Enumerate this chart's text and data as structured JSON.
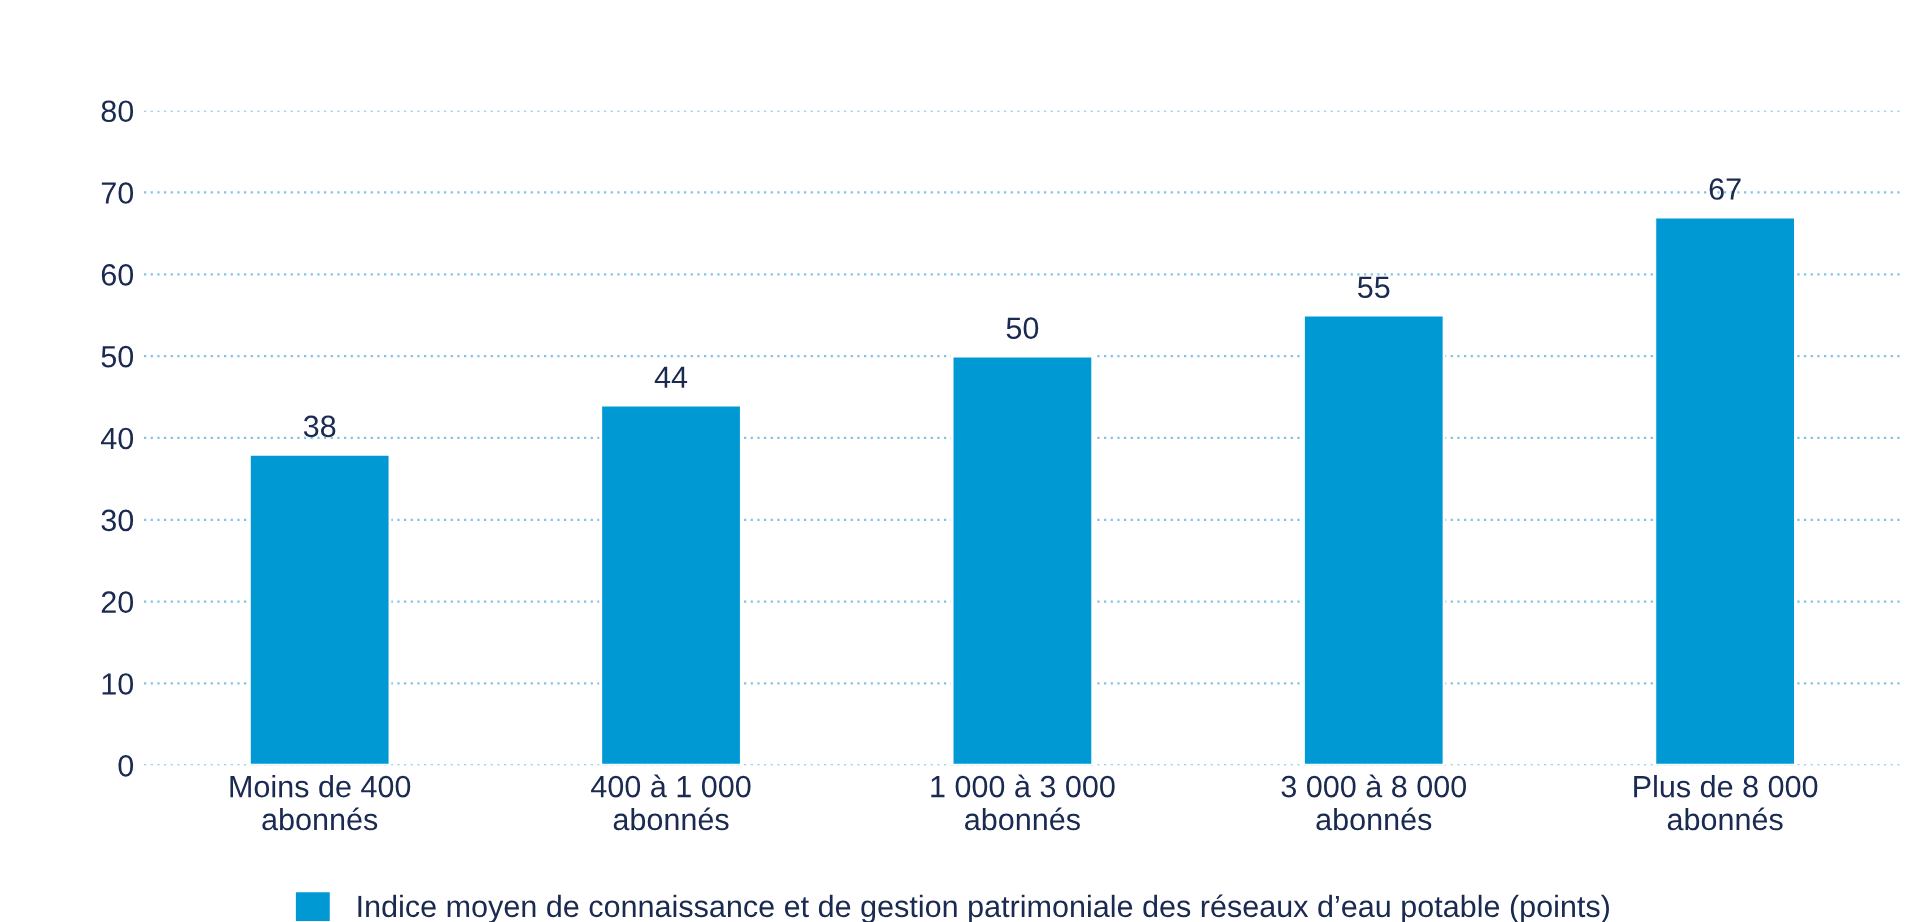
{
  "chart_data": {
    "type": "bar",
    "categories": [
      "Moins de 400\nabonnés",
      "400 à 1 000\nabonnés",
      "1 000 à 3 000\nabonnés",
      "3 000 à 8 000\nabonnés",
      "Plus de 8 000\nabonnés"
    ],
    "series": [
      {
        "name": "Indice moyen de connaissance et de gestion patrimoniale des réseaux d’eau potable (points)",
        "color": "#0099d4",
        "values": [
          38,
          44,
          50,
          55,
          67
        ]
      }
    ],
    "ylim": [
      0,
      80
    ],
    "yticks": [
      0,
      10,
      20,
      30,
      40,
      50,
      60,
      70,
      80
    ],
    "grid": "y",
    "legend": "bottom",
    "data_labels": true
  }
}
